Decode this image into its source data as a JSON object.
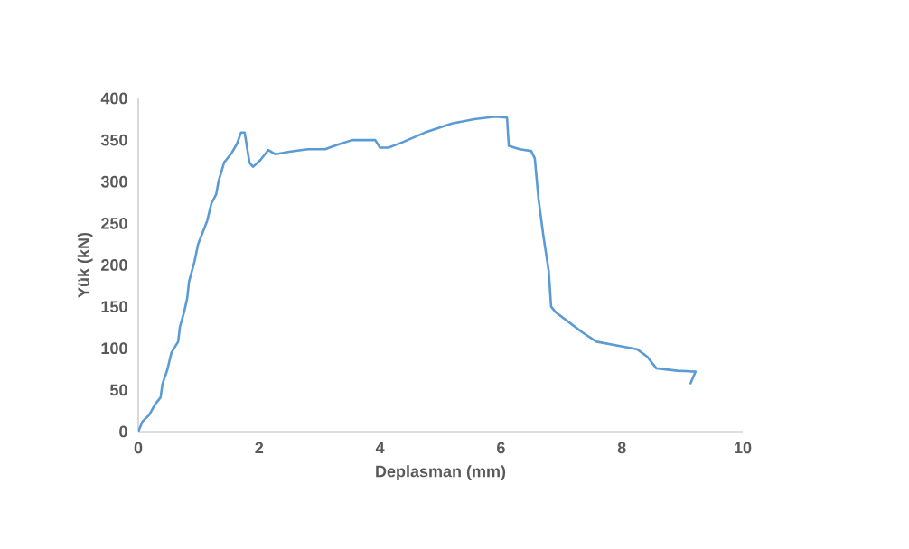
{
  "chart_data": {
    "type": "line",
    "xlabel": "Deplasman  (mm)",
    "ylabel": "Yük (kN)",
    "xlim": [
      0,
      10
    ],
    "xticks": [
      0,
      2,
      4,
      6,
      8,
      10
    ],
    "ylim": [
      0,
      400
    ],
    "yticks": [
      0,
      50,
      100,
      150,
      200,
      250,
      300,
      350,
      400
    ],
    "grid": false,
    "marker": "none",
    "line_style": "solid",
    "x": [
      0,
      0.07,
      0.18,
      0.28,
      0.37,
      0.4,
      0.48,
      0.55,
      0.66,
      0.69,
      0.76,
      0.81,
      0.84,
      0.93,
      0.99,
      1.05,
      1.14,
      1.21,
      1.29,
      1.33,
      1.42,
      1.54,
      1.63,
      1.7,
      1.76,
      1.84,
      1.9,
      2.02,
      2.15,
      2.27,
      2.5,
      2.8,
      3.09,
      3.32,
      3.54,
      3.92,
      4.0,
      4.14,
      4.36,
      4.74,
      5.19,
      5.56,
      5.9,
      6.1,
      6.13,
      6.31,
      6.5,
      6.56,
      6.62,
      6.7,
      6.79,
      6.83,
      6.91,
      7.13,
      7.35,
      7.58,
      7.95,
      8.25,
      8.42,
      8.57,
      8.92,
      9.22,
      9.13
    ],
    "series": [
      {
        "color": "#5b9bd5",
        "values": [
          0,
          12,
          20,
          33,
          41,
          57,
          74,
          95,
          108,
          126,
          144,
          160,
          180,
          204,
          225,
          236,
          253,
          274,
          285,
          301,
          323,
          334,
          345,
          359,
          359,
          323,
          318,
          326,
          338,
          333,
          336,
          339,
          339,
          345,
          350,
          350,
          341,
          341,
          347,
          359,
          370,
          375,
          378,
          377,
          343,
          339,
          337,
          328,
          280,
          236,
          193,
          150,
          143,
          131,
          119,
          108,
          103,
          99,
          90,
          76,
          73,
          72,
          57
        ]
      }
    ]
  }
}
